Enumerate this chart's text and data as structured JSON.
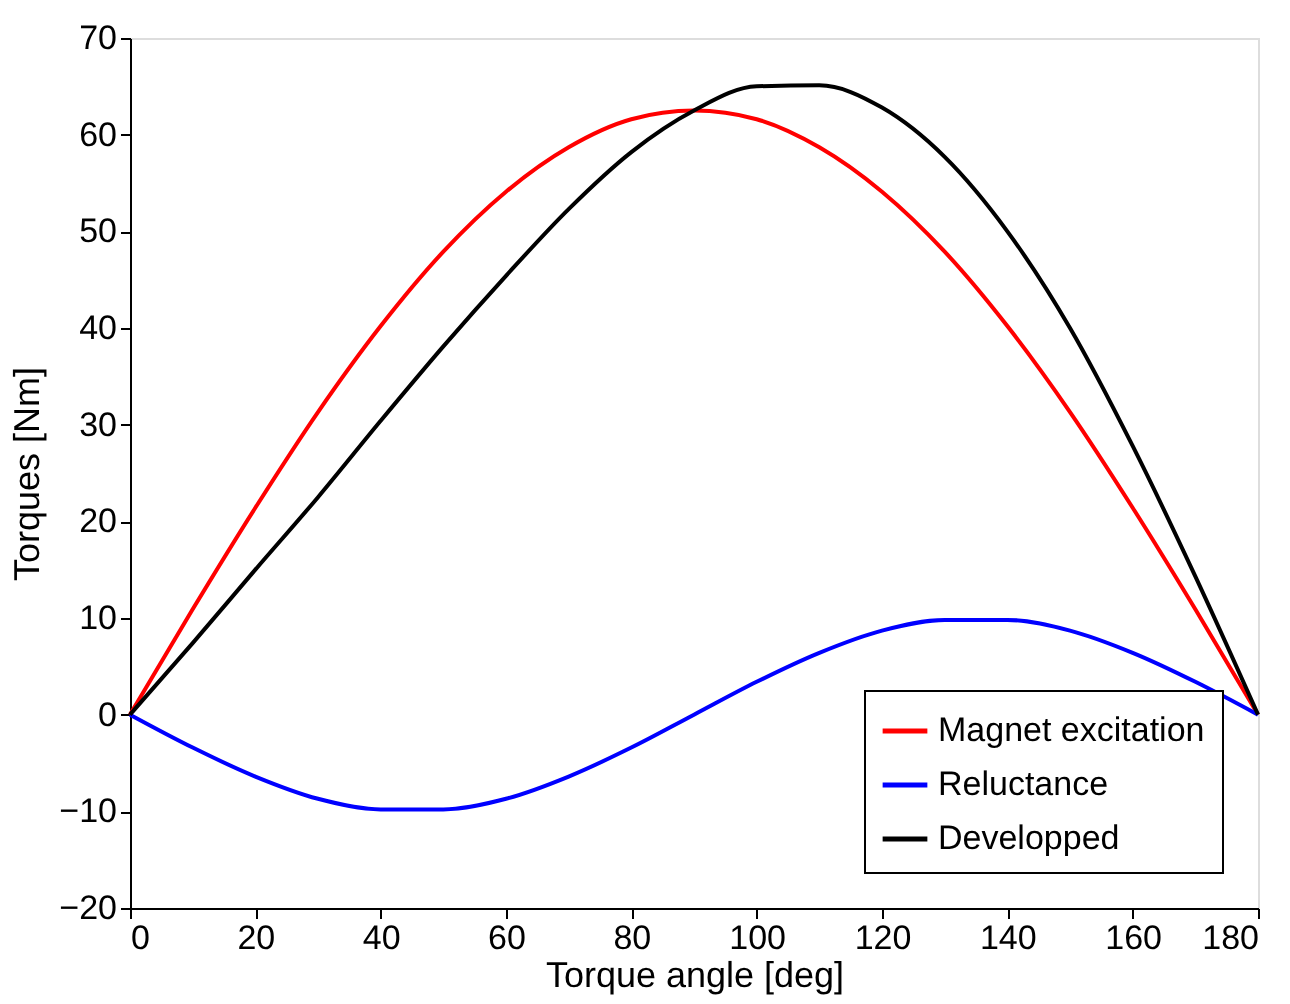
{
  "chart_data": {
    "type": "line",
    "xlabel": "Torque angle [deg]",
    "ylabel": "Torques [Nm]",
    "x": [
      0,
      10,
      20,
      30,
      40,
      50,
      60,
      70,
      80,
      90,
      100,
      110,
      120,
      130,
      140,
      150,
      160,
      170,
      180
    ],
    "series": [
      {
        "name": "Magnet excitation",
        "color": "#ff0000",
        "values": [
          0,
          10.9,
          21.4,
          31.3,
          40.2,
          47.9,
          54.1,
          58.7,
          61.6,
          62.5,
          61.6,
          58.7,
          54.1,
          47.9,
          40.2,
          31.3,
          21.4,
          10.9,
          0
        ]
      },
      {
        "name": "Reluctance",
        "color": "#0000ff",
        "values": [
          0,
          -3.4,
          -6.4,
          -8.7,
          -9.8,
          -9.8,
          -8.7,
          -6.4,
          -3.4,
          0,
          3.4,
          6.4,
          8.7,
          9.8,
          9.8,
          8.7,
          6.4,
          3.4,
          0
        ]
      },
      {
        "name": "Developped",
        "color": "#000000",
        "values": [
          0,
          7.4,
          15.0,
          22.5,
          30.4,
          38.1,
          45.4,
          52.3,
          58.2,
          62.5,
          65.0,
          65.1,
          62.8,
          57.7,
          50.0,
          40.0,
          27.8,
          14.3,
          0
        ]
      }
    ],
    "xlim": [
      0,
      180
    ],
    "xticks": [
      0,
      20,
      40,
      60,
      80,
      100,
      120,
      140,
      160,
      180
    ],
    "ylim": [
      -20,
      70
    ],
    "yticks": [
      -20,
      -10,
      0,
      10,
      20,
      30,
      40,
      50,
      60,
      70
    ],
    "grid": false,
    "legend": "bottom right",
    "marker": "none",
    "line_style": "solid"
  }
}
